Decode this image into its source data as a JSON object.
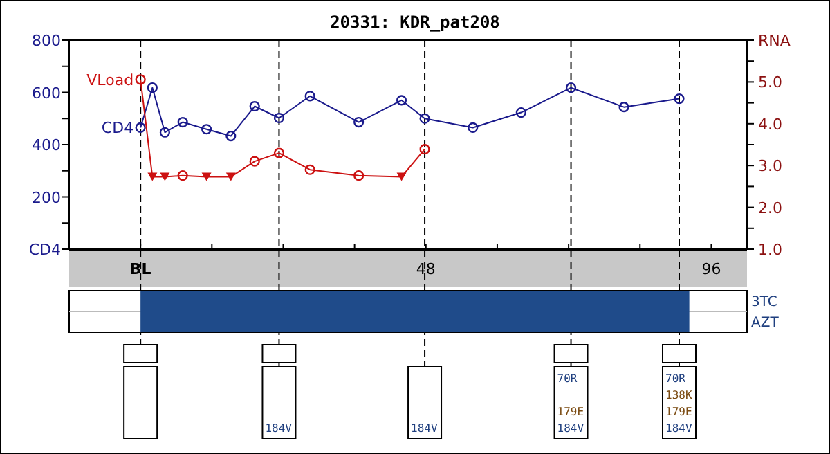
{
  "chart_data": [
    {
      "type": "line",
      "title": "20331: KDR_pat208",
      "xlim": [
        -12,
        102
      ],
      "xticks": [
        {
          "value": 0,
          "label": "BL"
        },
        {
          "value": 12,
          "label": null
        },
        {
          "value": 24,
          "label": null
        },
        {
          "value": 36,
          "label": null
        },
        48,
        {
          "value": 60,
          "label": null
        },
        {
          "value": 72,
          "label": null
        },
        {
          "value": 84,
          "label": null
        },
        96
      ],
      "ylim": [
        0,
        800
      ],
      "yticks": [
        {
          "value": 0,
          "label": "CD4"
        },
        {
          "value": 100,
          "label": null
        },
        200,
        {
          "value": 300,
          "label": null
        },
        400,
        {
          "value": 500,
          "label": null
        },
        600,
        {
          "value": 700,
          "label": null
        },
        800
      ],
      "y2lim": [
        1,
        6
      ],
      "y2ticks": [
        {
          "value": 1,
          "label": "1.0"
        },
        {
          "value": 1.5,
          "label": null
        },
        {
          "value": 2,
          "label": "2.0"
        },
        {
          "value": 2.5,
          "label": null
        },
        {
          "value": 3,
          "label": "3.0"
        },
        {
          "value": 3.5,
          "label": null
        },
        {
          "value": 4,
          "label": "4.0"
        },
        {
          "value": 4.5,
          "label": null
        },
        {
          "value": 5,
          "label": "5.0"
        },
        {
          "value": 5.5,
          "label": null
        },
        {
          "value": 6,
          "label": "RNA"
        }
      ],
      "series": [
        {
          "name": "CD4",
          "type": "line",
          "color": "#1a1a8c",
          "marker": "circle",
          "x": [
            0,
            2,
            4.1,
            7.1,
            11.1,
            15.2,
            19.2,
            23.3,
            28.5,
            36.7,
            43.9,
            47.8,
            55.9,
            64,
            72.4,
            81.3,
            90.6
          ],
          "values": [
            465,
            618,
            447,
            486,
            459,
            433,
            547,
            502,
            586,
            486,
            570,
            500,
            465,
            523,
            618,
            544,
            576
          ]
        },
        {
          "name": "VLoad",
          "type": "line",
          "axis": "y2",
          "color": "#cc1111",
          "marker": "none",
          "x": [
            0,
            2,
            4.1,
            7.1,
            11.1,
            15.2,
            19.2,
            23.3,
            28.5,
            36.7,
            43.9,
            47.8
          ],
          "values": [
            5.06,
            2.73,
            2.73,
            2.76,
            2.73,
            2.73,
            3.1,
            3.3,
            2.9,
            2.76,
            2.73,
            3.39
          ]
        },
        {
          "type": "scatter",
          "axis": "y2",
          "color": "#cc1111",
          "marker": "circle",
          "x": [
            0,
            7.1,
            19.2,
            23.3,
            28.5,
            36.7,
            47.8
          ],
          "values": [
            5.06,
            2.76,
            3.1,
            3.3,
            2.9,
            2.76,
            3.39
          ]
        },
        {
          "type": "scatter",
          "axis": "y2",
          "color": "#cc1111",
          "marker": "triangle",
          "x": [
            2,
            4.1,
            11.1,
            15.2,
            43.9
          ],
          "values": [
            2.73,
            2.73,
            2.73,
            2.73,
            2.73
          ]
        }
      ],
      "ref_lines": [
        {
          "axis": "x",
          "value": 0,
          "color": "#000000",
          "line_style": "dashed"
        },
        {
          "axis": "x",
          "value": 23.3,
          "color": "#000000",
          "line_style": "dashed",
          "label": "184V"
        },
        {
          "axis": "x",
          "value": 47.8,
          "color": "#000000",
          "line_style": "dashed",
          "label": "184V"
        },
        {
          "axis": "x",
          "value": 72.4,
          "color": "#000000",
          "line_style": "dashed",
          "label": "70R\n179E\n184V"
        },
        {
          "axis": "x",
          "value": 90.6,
          "color": "#000000",
          "line_style": "dashed",
          "label": "70R\n138K\n179E\n184V"
        }
      ]
    },
    {
      "type": "bar",
      "orientation": "horizontal",
      "categories": [
        "3TC",
        "AZT"
      ],
      "base": [
        0,
        0
      ],
      "values": [
        92.3,
        92.3
      ],
      "xlim": [
        -12,
        102
      ],
      "color": "#1f4b8a",
      "tick_labels": "y"
    }
  ]
}
